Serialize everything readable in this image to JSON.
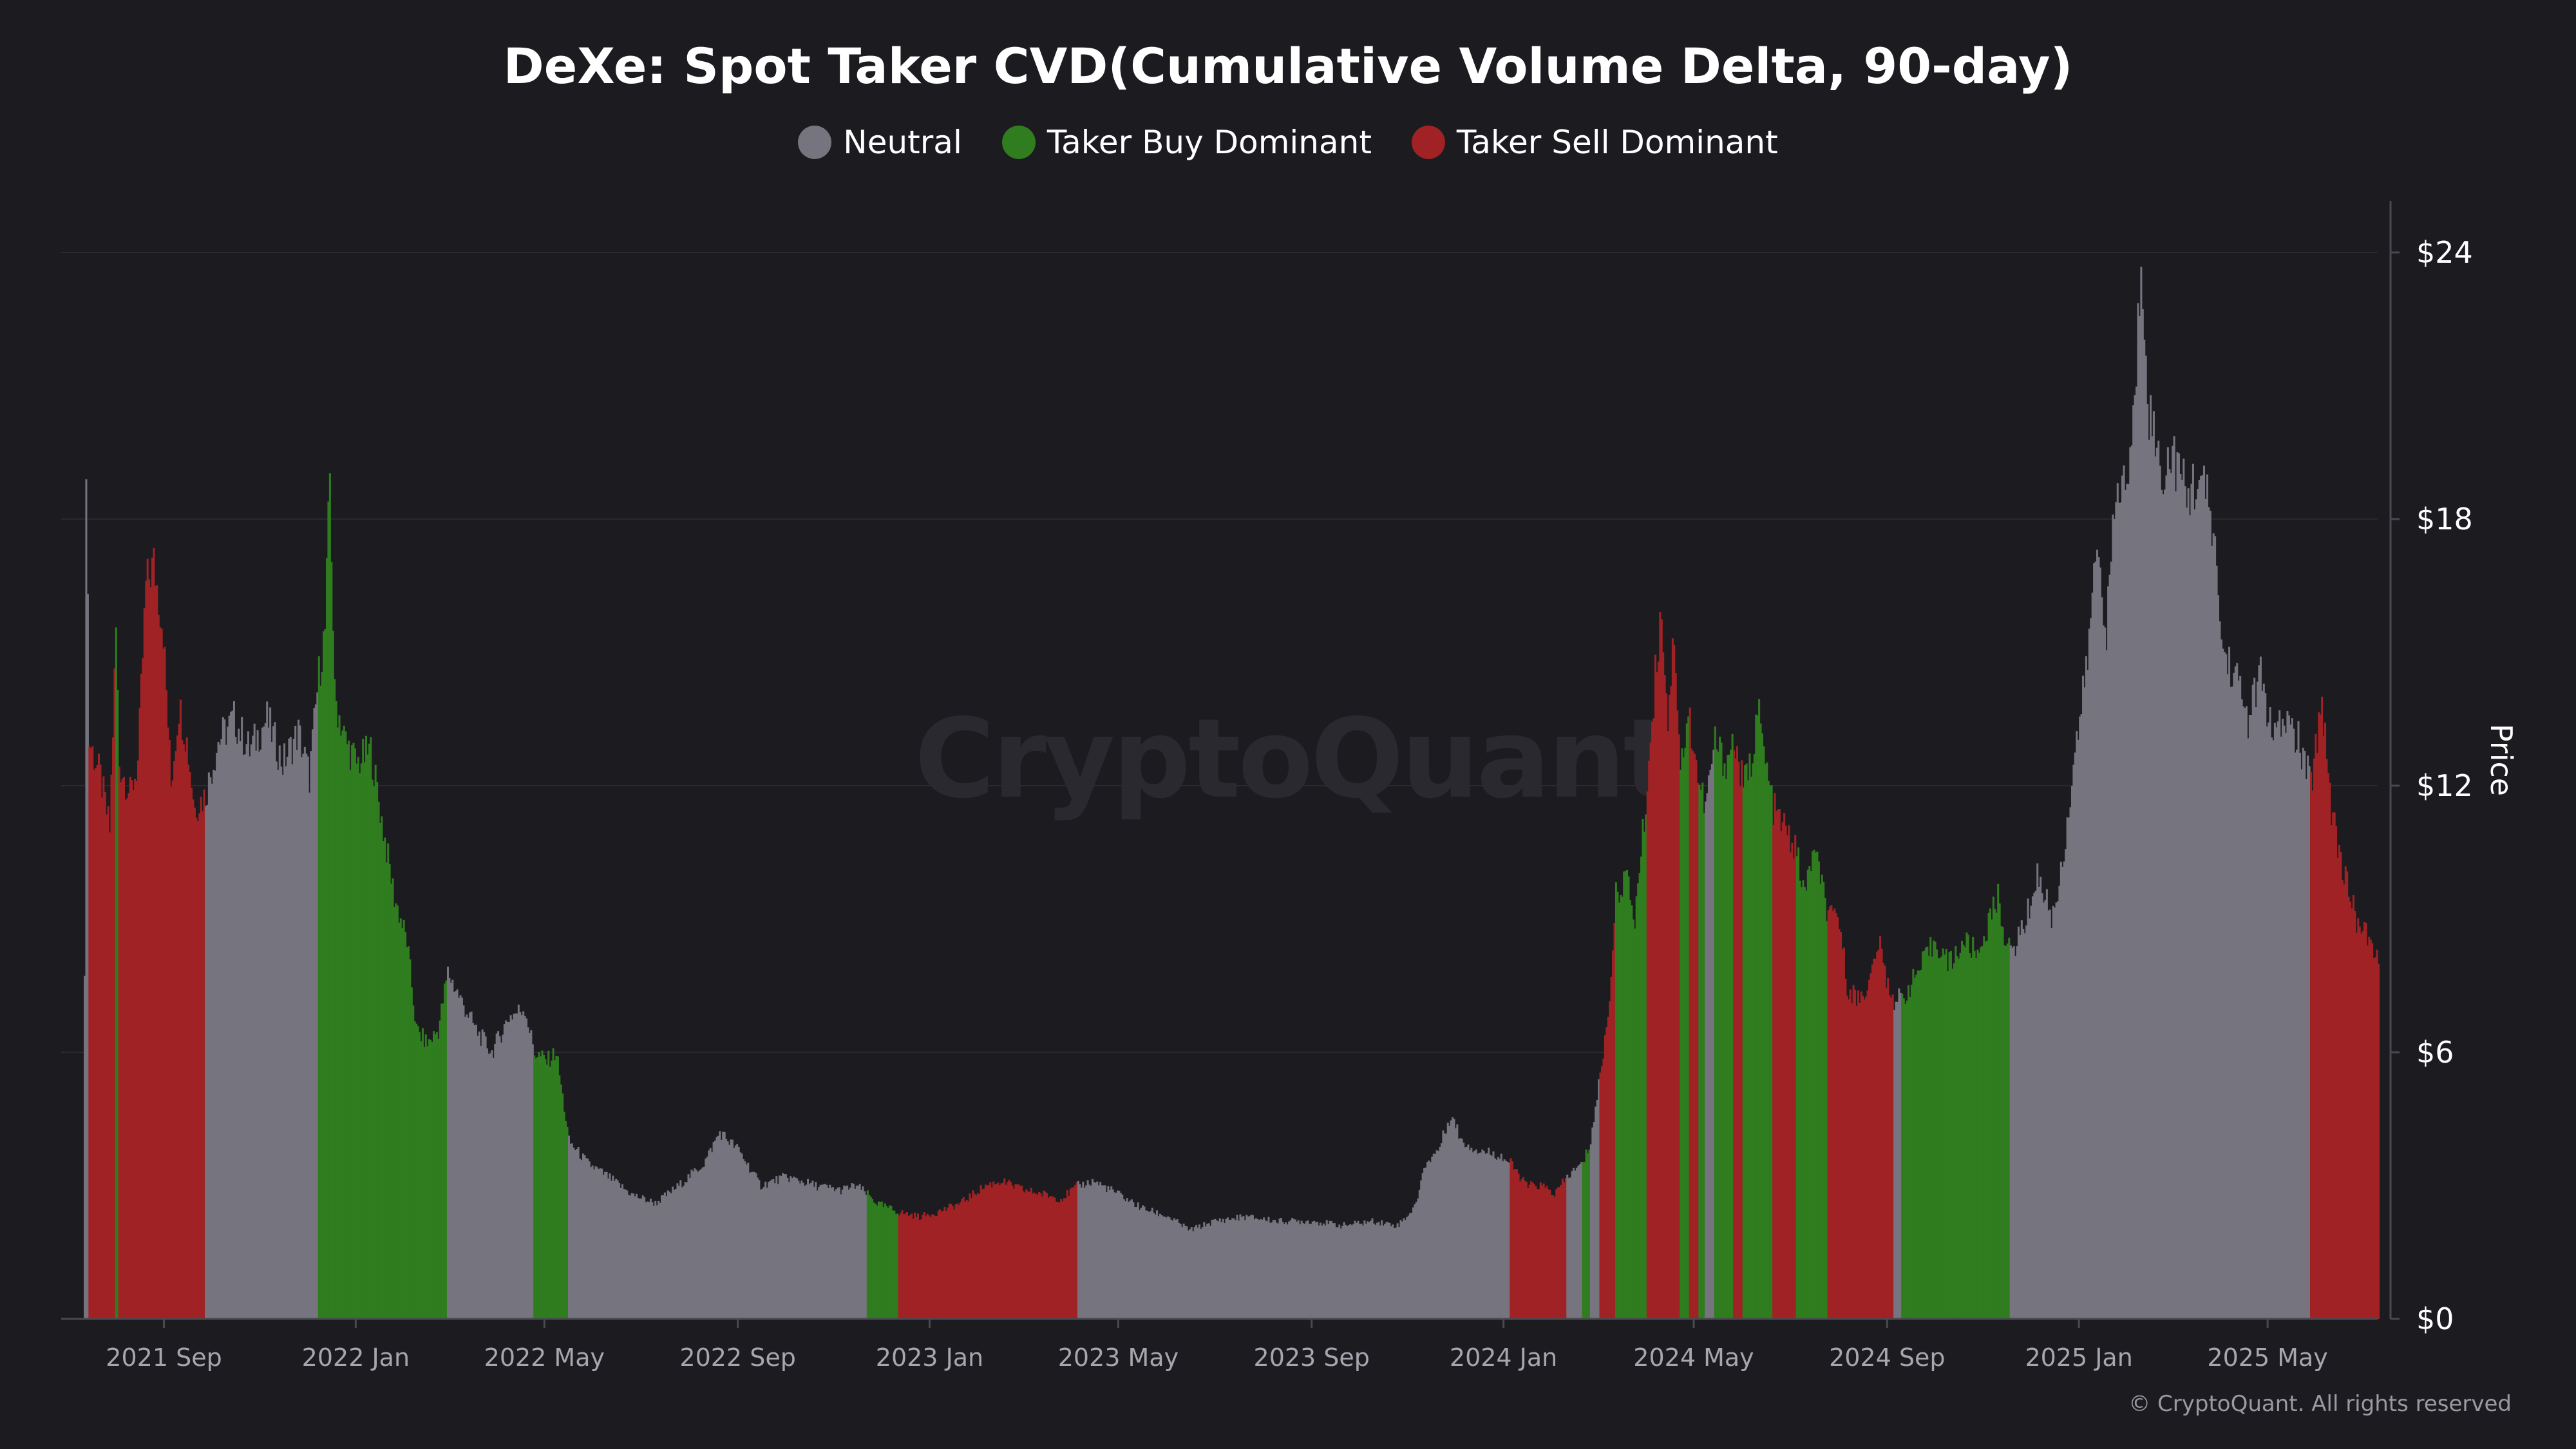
{
  "title": "DeXe: Spot Taker CVD(Cumulative Volume Delta, 90-day)",
  "watermark": "CryptoQuant",
  "copyright": "© CryptoQuant. All rights reserved",
  "legend": [
    {
      "label": "Neutral",
      "color": "#76747f"
    },
    {
      "label": "Taker Buy Dominant",
      "color": "#2f7d1e"
    },
    {
      "label": "Taker Sell Dominant",
      "color": "#a02224"
    }
  ],
  "chart_data": {
    "type": "bar",
    "title": "DeXe: Spot Taker CVD(Cumulative Volume Delta, 90-day)",
    "ylabel": "Price",
    "y_axis_position": "right",
    "ylim": [
      0,
      24
    ],
    "yticks": [
      {
        "value": 0,
        "label": "$0"
      },
      {
        "value": 6,
        "label": "$6"
      },
      {
        "value": 12,
        "label": "$12"
      },
      {
        "value": 18,
        "label": "$18"
      },
      {
        "value": 24,
        "label": "$24"
      }
    ],
    "x_start": "2021-07-12",
    "x_end": "2025-07-10",
    "xticks": [
      {
        "date": "2021-09-01",
        "label": "2021 Sep"
      },
      {
        "date": "2022-01-01",
        "label": "2022 Jan"
      },
      {
        "date": "2022-05-01",
        "label": "2022 May"
      },
      {
        "date": "2022-09-01",
        "label": "2022 Sep"
      },
      {
        "date": "2023-01-01",
        "label": "2023 Jan"
      },
      {
        "date": "2023-05-01",
        "label": "2023 May"
      },
      {
        "date": "2023-09-01",
        "label": "2023 Sep"
      },
      {
        "date": "2024-01-01",
        "label": "2024 Jan"
      },
      {
        "date": "2024-05-01",
        "label": "2024 May"
      },
      {
        "date": "2024-09-01",
        "label": "2024 Sep"
      },
      {
        "date": "2025-01-01",
        "label": "2025 Jan"
      },
      {
        "date": "2025-05-01",
        "label": "2025 May"
      }
    ],
    "grid": true,
    "legend_position": "top-center",
    "colors": {
      "neutral": "#76747f",
      "buy": "#2f7d1e",
      "sell": "#a02224"
    },
    "price_series": [
      [
        "2021-07-12",
        7.5,
        "neutral"
      ],
      [
        "2021-07-13",
        19.5,
        "neutral"
      ],
      [
        "2021-07-15",
        13.0,
        "sell"
      ],
      [
        "2021-07-22",
        12.2,
        "sell"
      ],
      [
        "2021-07-28",
        11.0,
        "sell"
      ],
      [
        "2021-08-01",
        15.5,
        "buy"
      ],
      [
        "2021-08-03",
        12.5,
        "sell"
      ],
      [
        "2021-08-10",
        11.8,
        "sell"
      ],
      [
        "2021-08-15",
        12.5,
        "sell"
      ],
      [
        "2021-08-20",
        16.5,
        "sell"
      ],
      [
        "2021-08-25",
        17.0,
        "sell"
      ],
      [
        "2021-08-31",
        15.5,
        "sell"
      ],
      [
        "2021-09-05",
        12.0,
        "sell"
      ],
      [
        "2021-09-10",
        13.8,
        "sell"
      ],
      [
        "2021-09-15",
        13.0,
        "sell"
      ],
      [
        "2021-09-20",
        11.5,
        "sell"
      ],
      [
        "2021-09-27",
        11.8,
        "neutral"
      ],
      [
        "2021-10-05",
        13.0,
        "neutral"
      ],
      [
        "2021-10-15",
        13.5,
        "neutral"
      ],
      [
        "2021-10-25",
        12.8,
        "neutral"
      ],
      [
        "2021-11-05",
        13.5,
        "neutral"
      ],
      [
        "2021-11-15",
        12.5,
        "neutral"
      ],
      [
        "2021-11-25",
        13.2,
        "neutral"
      ],
      [
        "2021-12-02",
        12.2,
        "neutral"
      ],
      [
        "2021-12-08",
        14.5,
        "buy"
      ],
      [
        "2021-12-12",
        15.5,
        "buy"
      ],
      [
        "2021-12-15",
        19.0,
        "buy"
      ],
      [
        "2021-12-18",
        14.0,
        "buy"
      ],
      [
        "2021-12-25",
        13.0,
        "buy"
      ],
      [
        "2022-01-01",
        12.5,
        "buy"
      ],
      [
        "2022-01-10",
        12.8,
        "buy"
      ],
      [
        "2022-01-18",
        11.0,
        "buy"
      ],
      [
        "2022-01-25",
        9.5,
        "buy"
      ],
      [
        "2022-02-02",
        8.5,
        "buy"
      ],
      [
        "2022-02-08",
        6.5,
        "buy"
      ],
      [
        "2022-02-15",
        6.2,
        "buy"
      ],
      [
        "2022-02-22",
        6.5,
        "buy"
      ],
      [
        "2022-02-28",
        7.8,
        "neutral"
      ],
      [
        "2022-03-08",
        7.2,
        "neutral"
      ],
      [
        "2022-03-18",
        6.5,
        "neutral"
      ],
      [
        "2022-03-28",
        6.0,
        "neutral"
      ],
      [
        "2022-04-08",
        6.8,
        "neutral"
      ],
      [
        "2022-04-18",
        7.0,
        "neutral"
      ],
      [
        "2022-04-24",
        6.0,
        "buy"
      ],
      [
        "2022-05-02",
        5.8,
        "buy"
      ],
      [
        "2022-05-08",
        6.0,
        "buy"
      ],
      [
        "2022-05-12",
        5.0,
        "buy"
      ],
      [
        "2022-05-16",
        4.0,
        "neutral"
      ],
      [
        "2022-05-28",
        3.5,
        "neutral"
      ],
      [
        "2022-06-10",
        3.2,
        "neutral"
      ],
      [
        "2022-06-25",
        2.8,
        "neutral"
      ],
      [
        "2022-07-10",
        2.6,
        "neutral"
      ],
      [
        "2022-07-25",
        3.0,
        "neutral"
      ],
      [
        "2022-08-10",
        3.5,
        "neutral"
      ],
      [
        "2022-08-20",
        4.2,
        "neutral"
      ],
      [
        "2022-09-01",
        3.8,
        "neutral"
      ],
      [
        "2022-09-15",
        3.0,
        "neutral"
      ],
      [
        "2022-10-01",
        3.2,
        "neutral"
      ],
      [
        "2022-10-20",
        3.0,
        "neutral"
      ],
      [
        "2022-11-05",
        2.9,
        "neutral"
      ],
      [
        "2022-11-15",
        3.0,
        "neutral"
      ],
      [
        "2022-11-22",
        2.8,
        "buy"
      ],
      [
        "2022-11-28",
        2.6,
        "buy"
      ],
      [
        "2022-12-05",
        2.5,
        "buy"
      ],
      [
        "2022-12-12",
        2.4,
        "sell"
      ],
      [
        "2022-12-25",
        2.3,
        "sell"
      ],
      [
        "2023-01-05",
        2.4,
        "sell"
      ],
      [
        "2023-01-20",
        2.6,
        "sell"
      ],
      [
        "2023-02-05",
        3.0,
        "sell"
      ],
      [
        "2023-02-15",
        3.1,
        "sell"
      ],
      [
        "2023-03-01",
        2.9,
        "sell"
      ],
      [
        "2023-03-15",
        2.8,
        "sell"
      ],
      [
        "2023-03-25",
        2.7,
        "sell"
      ],
      [
        "2023-04-05",
        3.0,
        "neutral"
      ],
      [
        "2023-04-15",
        3.1,
        "neutral"
      ],
      [
        "2023-05-01",
        2.8,
        "neutral"
      ],
      [
        "2023-05-15",
        2.5,
        "neutral"
      ],
      [
        "2023-06-01",
        2.3,
        "neutral"
      ],
      [
        "2023-06-15",
        2.0,
        "neutral"
      ],
      [
        "2023-07-01",
        2.2,
        "neutral"
      ],
      [
        "2023-07-20",
        2.3,
        "neutral"
      ],
      [
        "2023-08-10",
        2.2,
        "neutral"
      ],
      [
        "2023-09-01",
        2.2,
        "neutral"
      ],
      [
        "2023-09-20",
        2.1,
        "neutral"
      ],
      [
        "2023-10-10",
        2.2,
        "neutral"
      ],
      [
        "2023-10-25",
        2.1,
        "neutral"
      ],
      [
        "2023-11-05",
        2.5,
        "neutral"
      ],
      [
        "2023-11-12",
        3.5,
        "neutral"
      ],
      [
        "2023-11-20",
        3.8,
        "neutral"
      ],
      [
        "2023-11-28",
        4.6,
        "neutral"
      ],
      [
        "2023-12-05",
        4.0,
        "neutral"
      ],
      [
        "2023-12-15",
        3.8,
        "neutral"
      ],
      [
        "2023-12-28",
        3.7,
        "neutral"
      ],
      [
        "2024-01-05",
        3.5,
        "sell"
      ],
      [
        "2024-01-15",
        3.0,
        "sell"
      ],
      [
        "2024-01-25",
        3.0,
        "sell"
      ],
      [
        "2024-02-02",
        2.8,
        "sell"
      ],
      [
        "2024-02-10",
        3.2,
        "neutral"
      ],
      [
        "2024-02-20",
        3.5,
        "buy"
      ],
      [
        "2024-02-25",
        4.0,
        "neutral"
      ],
      [
        "2024-03-02",
        5.5,
        "sell"
      ],
      [
        "2024-03-07",
        6.8,
        "sell"
      ],
      [
        "2024-03-12",
        9.5,
        "buy"
      ],
      [
        "2024-03-18",
        10.0,
        "buy"
      ],
      [
        "2024-03-24",
        9.0,
        "buy"
      ],
      [
        "2024-04-01",
        12.0,
        "sell"
      ],
      [
        "2024-04-06",
        14.5,
        "sell"
      ],
      [
        "2024-04-10",
        16.0,
        "sell"
      ],
      [
        "2024-04-14",
        13.5,
        "sell"
      ],
      [
        "2024-04-18",
        15.5,
        "sell"
      ],
      [
        "2024-04-22",
        12.5,
        "buy"
      ],
      [
        "2024-04-28",
        13.5,
        "sell"
      ],
      [
        "2024-05-04",
        12.0,
        "buy"
      ],
      [
        "2024-05-08",
        11.5,
        "neutral"
      ],
      [
        "2024-05-14",
        13.0,
        "buy"
      ],
      [
        "2024-05-20",
        12.5,
        "buy"
      ],
      [
        "2024-05-26",
        13.0,
        "sell"
      ],
      [
        "2024-06-01",
        12.0,
        "buy"
      ],
      [
        "2024-06-06",
        12.5,
        "buy"
      ],
      [
        "2024-06-10",
        13.8,
        "buy"
      ],
      [
        "2024-06-15",
        12.5,
        "buy"
      ],
      [
        "2024-06-20",
        11.5,
        "sell"
      ],
      [
        "2024-06-28",
        11.0,
        "sell"
      ],
      [
        "2024-07-05",
        10.5,
        "buy"
      ],
      [
        "2024-07-10",
        9.5,
        "buy"
      ],
      [
        "2024-07-15",
        10.5,
        "buy"
      ],
      [
        "2024-07-20",
        10.0,
        "buy"
      ],
      [
        "2024-07-25",
        9.0,
        "sell"
      ],
      [
        "2024-08-01",
        9.0,
        "sell"
      ],
      [
        "2024-08-06",
        7.5,
        "sell"
      ],
      [
        "2024-08-12",
        7.2,
        "sell"
      ],
      [
        "2024-08-20",
        7.5,
        "sell"
      ],
      [
        "2024-08-26",
        8.5,
        "sell"
      ],
      [
        "2024-09-01",
        7.5,
        "sell"
      ],
      [
        "2024-09-05",
        7.2,
        "neutral"
      ],
      [
        "2024-09-10",
        7.2,
        "buy"
      ],
      [
        "2024-09-20",
        7.8,
        "buy"
      ],
      [
        "2024-10-01",
        8.5,
        "buy"
      ],
      [
        "2024-10-10",
        8.0,
        "buy"
      ],
      [
        "2024-10-20",
        8.5,
        "buy"
      ],
      [
        "2024-10-28",
        8.2,
        "buy"
      ],
      [
        "2024-11-05",
        9.0,
        "buy"
      ],
      [
        "2024-11-10",
        9.5,
        "buy"
      ],
      [
        "2024-11-15",
        8.5,
        "buy"
      ],
      [
        "2024-11-18",
        8.2,
        "neutral"
      ],
      [
        "2024-11-28",
        9.0,
        "neutral"
      ],
      [
        "2024-12-05",
        10.0,
        "neutral"
      ],
      [
        "2024-12-15",
        9.0,
        "neutral"
      ],
      [
        "2024-12-22",
        10.5,
        "neutral"
      ],
      [
        "2024-12-28",
        12.5,
        "neutral"
      ],
      [
        "2025-01-05",
        14.5,
        "neutral"
      ],
      [
        "2025-01-12",
        17.5,
        "neutral"
      ],
      [
        "2025-01-18",
        15.5,
        "neutral"
      ],
      [
        "2025-01-24",
        18.5,
        "neutral"
      ],
      [
        "2025-02-01",
        19.0,
        "neutral"
      ],
      [
        "2025-02-05",
        20.5,
        "neutral"
      ],
      [
        "2025-02-09",
        24.0,
        "neutral"
      ],
      [
        "2025-02-14",
        20.5,
        "neutral"
      ],
      [
        "2025-02-22",
        19.0,
        "neutral"
      ],
      [
        "2025-03-01",
        19.5,
        "neutral"
      ],
      [
        "2025-03-10",
        18.5,
        "neutral"
      ],
      [
        "2025-03-18",
        19.0,
        "neutral"
      ],
      [
        "2025-03-26",
        18.0,
        "neutral"
      ],
      [
        "2025-04-02",
        15.0,
        "neutral"
      ],
      [
        "2025-04-10",
        14.5,
        "neutral"
      ],
      [
        "2025-04-18",
        13.5,
        "neutral"
      ],
      [
        "2025-04-26",
        14.5,
        "neutral"
      ],
      [
        "2025-05-04",
        13.0,
        "neutral"
      ],
      [
        "2025-05-12",
        13.5,
        "neutral"
      ],
      [
        "2025-05-20",
        13.0,
        "neutral"
      ],
      [
        "2025-05-28",
        12.0,
        "sell"
      ],
      [
        "2025-06-04",
        14.0,
        "sell"
      ],
      [
        "2025-06-10",
        11.5,
        "sell"
      ],
      [
        "2025-06-18",
        10.0,
        "sell"
      ],
      [
        "2025-06-26",
        9.0,
        "sell"
      ],
      [
        "2025-07-04",
        8.5,
        "sell"
      ],
      [
        "2025-07-10",
        8.0,
        "sell"
      ]
    ]
  }
}
